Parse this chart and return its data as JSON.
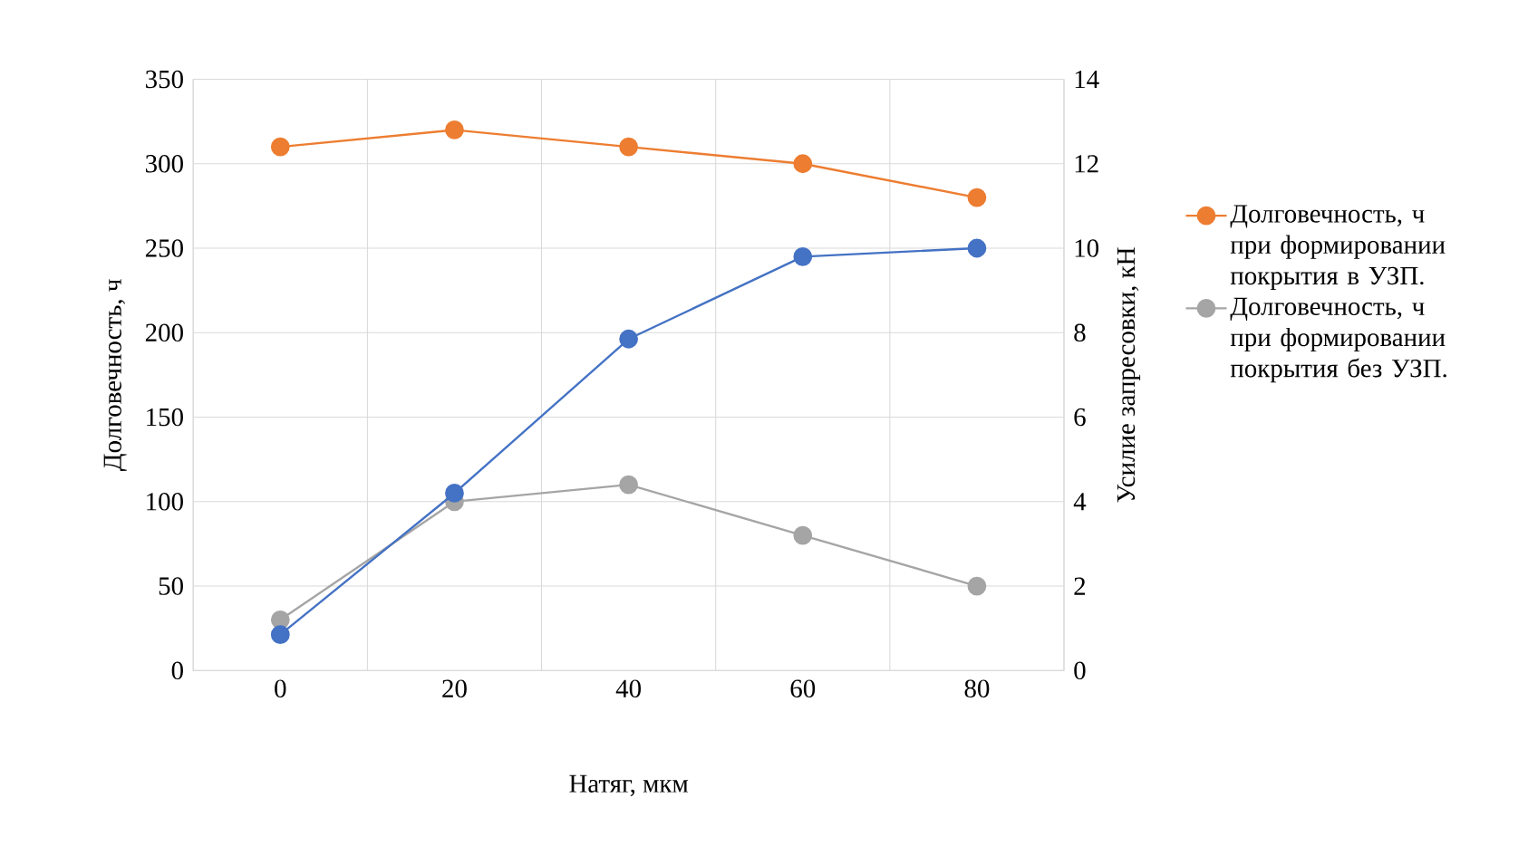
{
  "chart_data": {
    "type": "line",
    "xlabel": "Натяг, мкм",
    "ylabel": "Долговечность, ч",
    "y2label": "Усилие запресовки, кН",
    "categories": [
      "0",
      "20",
      "40",
      "60",
      "80"
    ],
    "series": [
      {
        "name": "Долговечность, ч при формировании покрытия в УЗП.",
        "color": "#ed7d31",
        "values": [
          310,
          320,
          310,
          300,
          280
        ]
      },
      {
        "name": "Долговечность, ч при формировании покрытия без УЗП.",
        "color": "#a5a5a5",
        "values": [
          30,
          100,
          110,
          80,
          50
        ]
      },
      {
        "color": "#4472c4",
        "axis": "y2",
        "values": [
          0.85,
          4.2,
          7.85,
          9.8,
          10
        ]
      }
    ],
    "ylim": [
      0,
      350
    ],
    "yticks": [
      0,
      50,
      100,
      150,
      200,
      250,
      300,
      350
    ],
    "y2lim": [
      0,
      14
    ],
    "y2ticks": [
      0,
      2,
      4,
      6,
      8,
      10,
      12,
      14
    ],
    "grid": true,
    "legend": "right",
    "marker": "circle"
  }
}
